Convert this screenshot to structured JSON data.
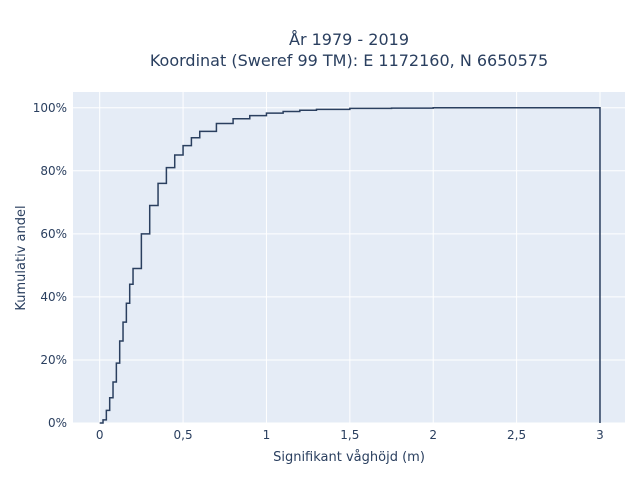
{
  "chart_data": {
    "type": "line",
    "title_lines": [
      "År 1979 - 2019",
      "Koordinat (Sweref 99 TM): E 1172160, N 6650575"
    ],
    "xlabel": "Signifikant våghöjd (m)",
    "ylabel": "Kumulativ andel",
    "xlim": [
      -0.16,
      3.15
    ],
    "ylim": [
      0,
      1.05
    ],
    "x_ticks": [
      0,
      0.5,
      1,
      1.5,
      2,
      2.5,
      3
    ],
    "x_tick_labels": [
      "0",
      "0,5",
      "1",
      "1,5",
      "2",
      "2,5",
      "3"
    ],
    "y_ticks": [
      0,
      0.2,
      0.4,
      0.6,
      0.8,
      1.0
    ],
    "y_tick_labels": [
      "0%",
      "20%",
      "40%",
      "60%",
      "80%",
      "100%"
    ],
    "grid": true,
    "line_shape": "step",
    "colors": {
      "line": "#2a3f5f",
      "plot_bg": "#e5ecf6",
      "grid": "#ffffff"
    },
    "series": [
      {
        "x": [
          0,
          0.02,
          0.04,
          0.06,
          0.08,
          0.1,
          0.12,
          0.14,
          0.16,
          0.18,
          0.2,
          0.25,
          0.3,
          0.35,
          0.4,
          0.45,
          0.5,
          0.55,
          0.6,
          0.7,
          0.8,
          0.9,
          1.0,
          1.1,
          1.2,
          1.3,
          1.5,
          1.75,
          2.0,
          2.5,
          3.0
        ],
        "y": [
          0,
          0.01,
          0.04,
          0.08,
          0.13,
          0.19,
          0.26,
          0.32,
          0.38,
          0.44,
          0.49,
          0.6,
          0.69,
          0.76,
          0.81,
          0.85,
          0.88,
          0.905,
          0.925,
          0.95,
          0.965,
          0.975,
          0.983,
          0.988,
          0.992,
          0.995,
          0.998,
          0.999,
          1.0,
          1.0,
          1.0
        ]
      }
    ]
  }
}
